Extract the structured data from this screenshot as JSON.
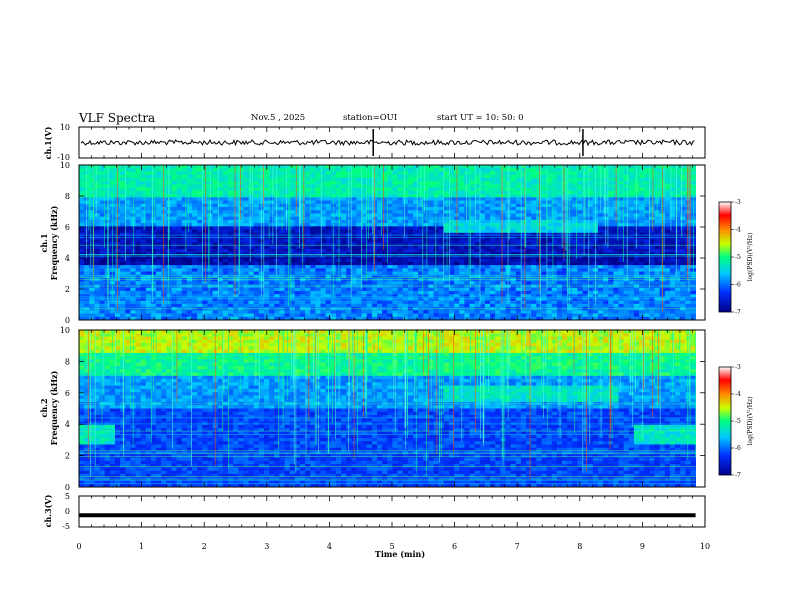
{
  "header": {
    "title": "VLF Spectra",
    "date": "Nov.5  , 2025",
    "station": "station=OUI",
    "start": "start  UT  =   10: 50: 0"
  },
  "chart_data": [
    {
      "type": "line",
      "panel": "ch1-waveform",
      "ylabel": "ch.1(V)",
      "ylim": [
        -10,
        10
      ],
      "ytick_labels": [
        "10",
        "-10"
      ],
      "series": [
        {
          "name": "ch.1",
          "description_value_mean": 0,
          "spikes_at_min": [
            4.7,
            8.05
          ]
        }
      ]
    },
    {
      "type": "heatmap",
      "panel": "ch1-spectrogram",
      "ylabel": "ch.1\nFrequency (kHz)",
      "ylim": [
        0,
        10
      ],
      "ytick_labels": [
        "0",
        "2",
        "4",
        "6",
        "8",
        "10"
      ],
      "xlim": [
        0,
        10
      ],
      "colorbar": {
        "label": "log(PSD)(V²/Hz)",
        "range": [
          -7,
          -3
        ],
        "tick_labels": [
          "-3",
          "-4",
          "-5",
          "-6",
          "-7"
        ]
      }
    },
    {
      "type": "heatmap",
      "panel": "ch2-spectrogram",
      "ylabel": "ch.2\nFrequency (kHz)",
      "ylim": [
        0,
        10
      ],
      "ytick_labels": [
        "0",
        "2",
        "4",
        "6",
        "8",
        "10"
      ],
      "xlim": [
        0,
        10
      ],
      "colorbar": {
        "label": "log(PSD)(V²/Hz)",
        "range": [
          -7,
          -3
        ],
        "tick_labels": [
          "-3",
          "-4",
          "-5",
          "-6",
          "-7"
        ]
      }
    },
    {
      "type": "line",
      "panel": "ch3-waveform",
      "ylabel": "ch.3(V)",
      "ylim": [
        -5,
        5
      ],
      "ytick_labels": [
        "5",
        "0",
        "-5"
      ],
      "series": [
        {
          "name": "ch.3",
          "constant_value": -1.2
        }
      ]
    }
  ],
  "xaxis": {
    "label": "Time  (min)",
    "range": [
      0,
      10
    ],
    "tick_labels": [
      "0",
      "1",
      "2",
      "3",
      "4",
      "5",
      "6",
      "7",
      "8",
      "9",
      "10"
    ]
  },
  "labels": {
    "ch1_v": "ch.1(V)",
    "ch1_freq": "ch.1",
    "freq_label": "Frequency  (kHz)",
    "ch2_freq": "ch.2",
    "ch3_v": "ch.3(V)",
    "cbar_label": "log(PSD)(V²/Hz)"
  },
  "colors": {
    "data_end_min": 9.85
  }
}
